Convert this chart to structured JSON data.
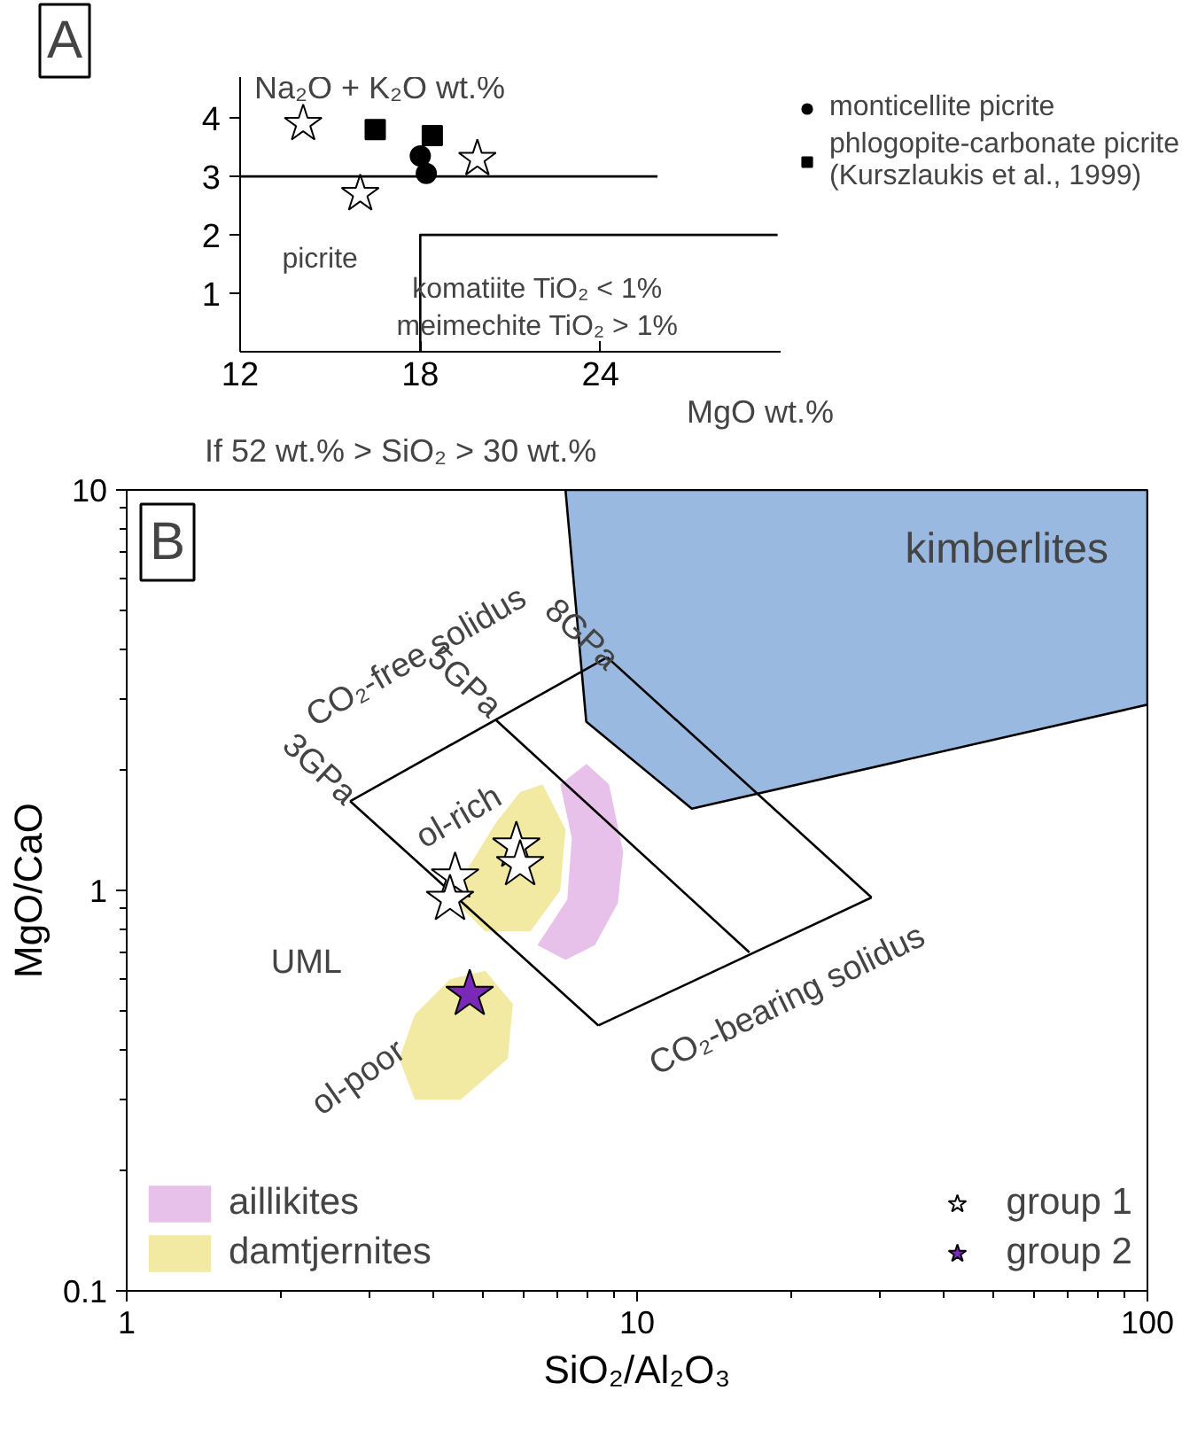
{
  "chart_data": [
    {
      "type": "scatter",
      "xlabel": "MgO wt.%",
      "ylabel": "Na₂O + K₂O wt.%",
      "xlim": [
        12,
        30
      ],
      "ylim": [
        0,
        4.7
      ],
      "xticks": [
        12,
        18,
        24
      ],
      "yticks": [
        1,
        2,
        3,
        4
      ],
      "legend": "top right",
      "annotations": [
        "A",
        "If 52 wt.% > SiO₂ > 30 wt.%",
        "picrite",
        "komatiite TiO₂ < 1%",
        "meimechite TiO₂ > 1%"
      ],
      "series": [
        {
          "type": "line",
          "color": "#000000",
          "x": [
            12,
            25.9
          ],
          "values": [
            3,
            3
          ]
        },
        {
          "type": "line",
          "color": "#000000",
          "x": [
            18,
            18,
            29.9
          ],
          "values": [
            0,
            2,
            2
          ]
        },
        {
          "marker": "star",
          "color": "#ffffff",
          "x": [
            14.1,
            16.0,
            19.9
          ],
          "values": [
            3.9,
            2.7,
            3.3
          ]
        },
        {
          "marker": "circle",
          "name": "monticellite picrite",
          "color": "#000000",
          "x": [
            18.0,
            18.2
          ],
          "values": [
            3.35,
            3.05
          ]
        },
        {
          "marker": "square",
          "name": "phlogopite-carbonate picrite\n(Kurszlaukis et al., 1999)",
          "color": "#000000",
          "x": [
            16.5,
            18.4
          ],
          "values": [
            3.8,
            3.7
          ]
        }
      ]
    },
    {
      "type": "scatter",
      "xlabel": "SiO₂/Al₂O₃",
      "ylabel": "MgO/CaO",
      "log": "xy",
      "xlim": [
        1,
        100
      ],
      "ylim": [
        0.1,
        10
      ],
      "xticks": [
        1,
        10,
        100
      ],
      "yticks": [
        0.1,
        1,
        10
      ],
      "legend": "bottom",
      "annotations": [
        "B",
        "UML",
        "ol-rich",
        "ol-poor",
        "CO₂-free solidus",
        "3GPa",
        "5GPa",
        "8GPa",
        "CO₂-bearing solidus"
      ],
      "series": [
        {
          "type": "area",
          "name": "kimberlites",
          "color": "#99b9e0",
          "x": [
            7.24,
            100,
            100,
            12.8,
            7.95
          ],
          "values": [
            10,
            10,
            2.91,
            1.6,
            2.64
          ]
        },
        {
          "type": "area",
          "name": "aillikites",
          "color": "#e8c1ea",
          "x": [
            7.96,
            8.81,
            9.39,
            9.17,
            8.27,
            7.24,
            6.38,
            7.3,
            7.45,
            7.07
          ],
          "values": [
            2.07,
            1.84,
            1.25,
            0.93,
            0.73,
            0.67,
            0.73,
            0.95,
            1.35,
            1.84
          ]
        },
        {
          "type": "area",
          "name": "damtjernites",
          "color": "#f2e9a3",
          "x": [
            6.53,
            7.24,
            7.07,
            6.18,
            5.04,
            4.51,
            4.65,
            5.28,
            5.9
          ],
          "values": [
            1.84,
            1.42,
            1.0,
            0.79,
            0.79,
            0.91,
            1.13,
            1.47,
            1.76
          ]
        },
        {
          "type": "area",
          "color": "#f2e9a3",
          "x": [
            5.04,
            5.71,
            5.58,
            4.51,
            3.67,
            3.42,
            3.67,
            4.3
          ],
          "values": [
            0.63,
            0.52,
            0.38,
            0.3,
            0.3,
            0.38,
            0.49,
            0.6
          ]
        },
        {
          "type": "line",
          "color": "#000000",
          "x": [
            2.74,
            8.74
          ],
          "values": [
            1.67,
            3.82
          ]
        },
        {
          "type": "line",
          "color": "#000000",
          "x": [
            8.4,
            28.8
          ],
          "values": [
            0.46,
            0.96
          ]
        },
        {
          "type": "line",
          "color": "#000000",
          "x": [
            2.74,
            8.4
          ],
          "values": [
            1.67,
            0.46
          ]
        },
        {
          "type": "line",
          "color": "#000000",
          "x": [
            5.28,
            16.6
          ],
          "values": [
            2.67,
            0.7
          ]
        },
        {
          "type": "line",
          "color": "#000000",
          "x": [
            8.74,
            28.8
          ],
          "values": [
            3.82,
            0.96
          ]
        },
        {
          "marker": "star",
          "name": "group 1",
          "color": "#ffffff",
          "x": [
            5.8,
            5.9,
            4.4,
            4.3
          ],
          "values": [
            1.29,
            1.16,
            1.08,
            0.95
          ]
        },
        {
          "marker": "star",
          "name": "group 2",
          "color": "#7a28b8",
          "x": [
            4.7
          ],
          "values": [
            0.55
          ]
        }
      ]
    }
  ]
}
